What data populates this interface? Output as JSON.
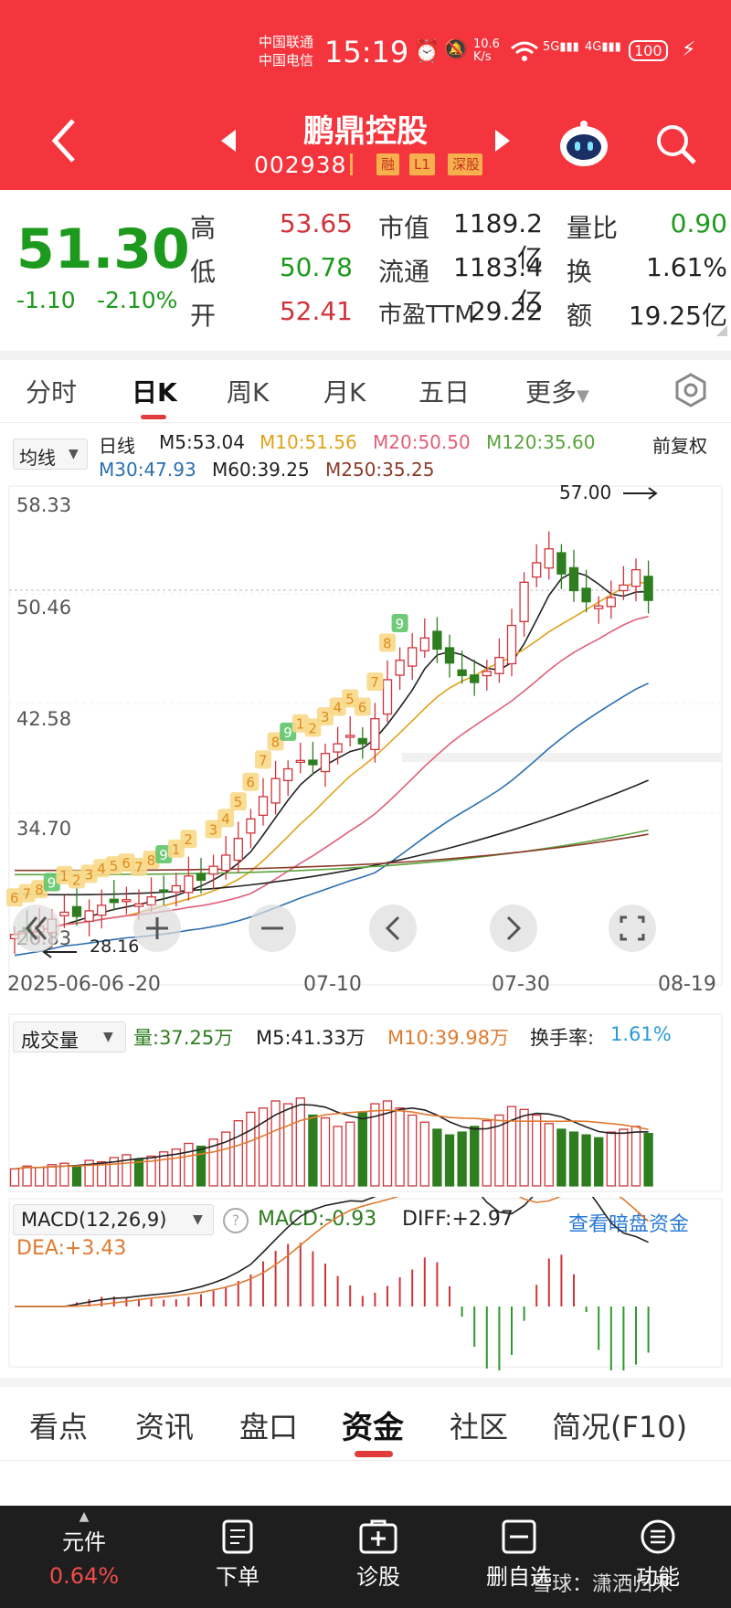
{
  "status": {
    "carrier1": "中国联通",
    "carrier2": "中国电信",
    "time": "15:19",
    "speed": "10.6 K/s",
    "battery": "100"
  },
  "stock": {
    "name": "鹏鼎控股",
    "code": "002938",
    "tags": [
      "融",
      "L1",
      "深股"
    ]
  },
  "quote": {
    "price": "51.30",
    "change": "-1.10",
    "change_pct": "-2.10%",
    "high_label": "高",
    "high": "53.65",
    "low_label": "低",
    "low": "50.78",
    "open_label": "开",
    "open": "52.41",
    "mktcap_label": "市值",
    "mktcap": "1189.2亿",
    "float_label": "流通",
    "float": "1183.4亿",
    "pe_label": "市盈TTM",
    "pe": "29.22",
    "volratio_label": "量比",
    "volratio": "0.90",
    "turnover_label": "换",
    "turnover": "1.61%",
    "amount_label": "额",
    "amount": "19.25亿"
  },
  "period_tabs": [
    "分时",
    "日K",
    "周K",
    "月K",
    "五日",
    "更多"
  ],
  "ma_legend": {
    "selector": "均线",
    "day_line": "日线",
    "m5": "M5:53.04",
    "m10": "M10:51.56",
    "m20": "M20:50.50",
    "m120": "M120:35.60",
    "m30": "M30:47.93",
    "m60": "M60:39.25",
    "m250": "M250:35.25",
    "adjust": "前复权"
  },
  "kchart": {
    "y_labels": [
      "58.33",
      "50.46",
      "42.58",
      "34.70",
      "26.83"
    ],
    "high_mark": "57.00",
    "low_mark": "28.16",
    "x_labels": [
      "2025-06-06",
      "-20",
      "07-10",
      "07-30",
      "08-19"
    ]
  },
  "vol_legend": {
    "selector": "成交量",
    "vol": "量:37.25万",
    "m5": "M5:41.33万",
    "m10": "M10:39.98万",
    "turnover_label": "换手率:",
    "turnover": "1.61%"
  },
  "macd_legend": {
    "selector": "MACD(12,26,9)",
    "macd": "MACD:-0.93",
    "diff": "DIFF:+2.97",
    "dea": "DEA:+3.43",
    "link": "查看暗盘资金"
  },
  "bottom_tabs": [
    "看点",
    "资讯",
    "盘口",
    "资金",
    "社区",
    "简况(F10)"
  ],
  "bottom_nav": {
    "item1": "元件",
    "item1_pct": "0.64%",
    "item2": "下单",
    "item3": "诊股",
    "item4": "删自选",
    "item5": "功能"
  },
  "watermark": "雪球：潇洒归来",
  "colors": {
    "up": "#d0343a",
    "down": "#2e7d1e",
    "header": "#f5353d",
    "m5": "#222222",
    "m10": "#e0a21b",
    "m20": "#e0607a",
    "m30": "#2a6fb0",
    "m60": "#222222",
    "m120": "#5aa33c",
    "m250": "#8b3a2a"
  }
}
